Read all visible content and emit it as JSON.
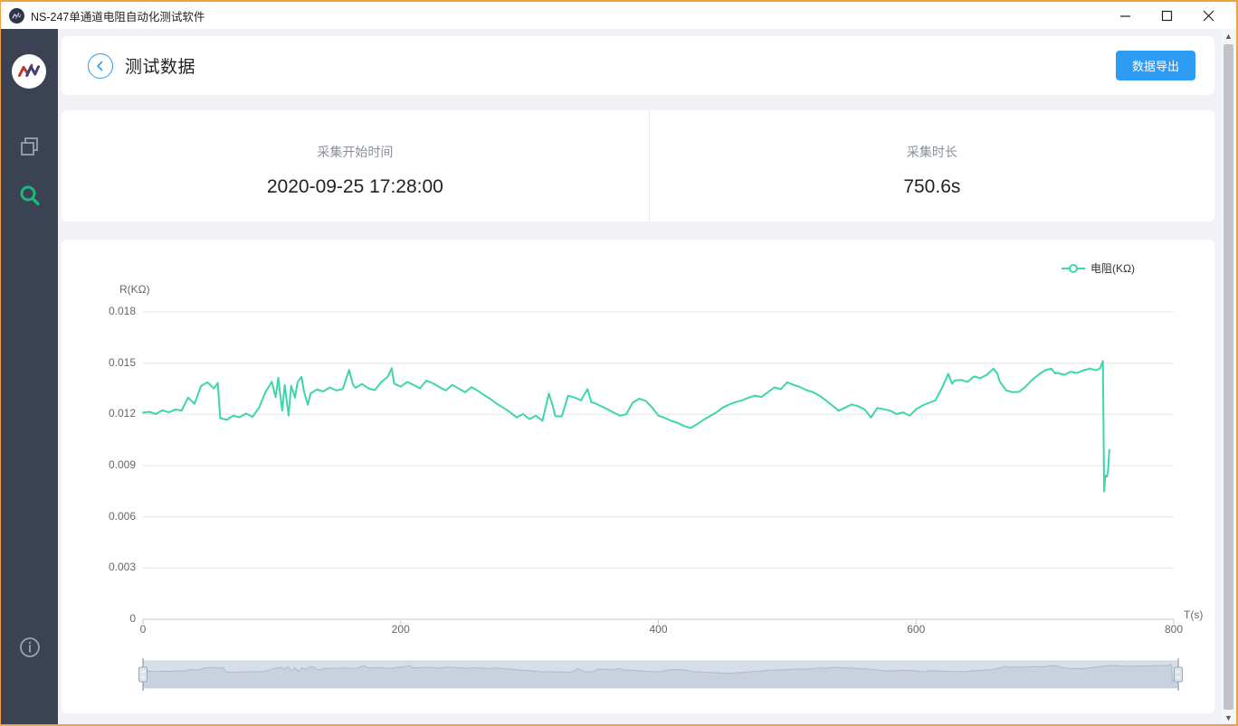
{
  "window": {
    "title": "NS-247单通道电阻自动化测试软件",
    "border_color": "#efa23d"
  },
  "titlebar": {
    "buttons": {
      "minimize": "minimize",
      "maximize": "maximize",
      "close": "close"
    }
  },
  "sidebar": {
    "items": [
      {
        "icon": "overlap-windows-icon",
        "active": false,
        "color": "#9aa2b1"
      },
      {
        "icon": "search-icon",
        "active": true,
        "color": "#1db87a"
      },
      {
        "icon": "info-icon",
        "active": false,
        "color": "#9aa2b1"
      }
    ]
  },
  "header": {
    "title": "测试数据",
    "export_button": "数据导出",
    "accent_color": "#2e9cf5"
  },
  "summary": {
    "fields": [
      {
        "label": "采集开始时间",
        "value": "2020-09-25 17:28:00"
      },
      {
        "label": "采集时长",
        "value": "750.6s"
      }
    ]
  },
  "chart_data": {
    "type": "line",
    "title": "",
    "xlabel": "T(s)",
    "ylabel": "R(KΩ)",
    "xlim": [
      0,
      800
    ],
    "ylim": [
      0,
      0.018
    ],
    "x_ticks": [
      0,
      200,
      400,
      600,
      800
    ],
    "y_ticks": [
      0,
      0.003,
      0.006,
      0.009,
      0.012,
      0.015,
      0.018
    ],
    "grid": "horizontal",
    "legend_position": "top-right",
    "datazoom_slider": true,
    "series": [
      {
        "name": "电阻(KΩ)",
        "color": "#3cd6ad",
        "points": [
          [
            0,
            0.0121
          ],
          [
            5,
            0.01215
          ],
          [
            10,
            0.01202
          ],
          [
            15,
            0.01224
          ],
          [
            20,
            0.01212
          ],
          [
            25,
            0.01228
          ],
          [
            30,
            0.01222
          ],
          [
            35,
            0.01298
          ],
          [
            40,
            0.01262
          ],
          [
            45,
            0.01366
          ],
          [
            50,
            0.01388
          ],
          [
            55,
            0.01352
          ],
          [
            58,
            0.01384
          ],
          [
            60,
            0.01178
          ],
          [
            65,
            0.01168
          ],
          [
            70,
            0.01192
          ],
          [
            75,
            0.01183
          ],
          [
            80,
            0.01205
          ],
          [
            85,
            0.01186
          ],
          [
            90,
            0.01238
          ],
          [
            95,
            0.0133
          ],
          [
            100,
            0.01392
          ],
          [
            103,
            0.013
          ],
          [
            105,
            0.01415
          ],
          [
            108,
            0.01222
          ],
          [
            110,
            0.01372
          ],
          [
            113,
            0.01192
          ],
          [
            115,
            0.01368
          ],
          [
            118,
            0.01298
          ],
          [
            120,
            0.01388
          ],
          [
            123,
            0.0142
          ],
          [
            125,
            0.01332
          ],
          [
            128,
            0.01256
          ],
          [
            130,
            0.01322
          ],
          [
            135,
            0.01346
          ],
          [
            140,
            0.01334
          ],
          [
            145,
            0.01358
          ],
          [
            150,
            0.0134
          ],
          [
            155,
            0.01348
          ],
          [
            160,
            0.0146
          ],
          [
            163,
            0.01372
          ],
          [
            165,
            0.01356
          ],
          [
            170,
            0.01378
          ],
          [
            175,
            0.01352
          ],
          [
            180,
            0.01342
          ],
          [
            185,
            0.0139
          ],
          [
            190,
            0.0142
          ],
          [
            193,
            0.0147
          ],
          [
            195,
            0.0138
          ],
          [
            200,
            0.01362
          ],
          [
            205,
            0.0139
          ],
          [
            210,
            0.01372
          ],
          [
            215,
            0.01352
          ],
          [
            220,
            0.01398
          ],
          [
            225,
            0.01382
          ],
          [
            230,
            0.0136
          ],
          [
            235,
            0.0134
          ],
          [
            240,
            0.01372
          ],
          [
            245,
            0.01352
          ],
          [
            250,
            0.0133
          ],
          [
            255,
            0.0136
          ],
          [
            260,
            0.01338
          ],
          [
            265,
            0.01312
          ],
          [
            270,
            0.01288
          ],
          [
            275,
            0.0126
          ],
          [
            280,
            0.01238
          ],
          [
            285,
            0.01212
          ],
          [
            290,
            0.01182
          ],
          [
            295,
            0.01202
          ],
          [
            300,
            0.01172
          ],
          [
            305,
            0.01192
          ],
          [
            310,
            0.01162
          ],
          [
            315,
            0.01322
          ],
          [
            318,
            0.0125
          ],
          [
            320,
            0.0119
          ],
          [
            325,
            0.01188
          ],
          [
            330,
            0.0131
          ],
          [
            335,
            0.01298
          ],
          [
            340,
            0.01282
          ],
          [
            345,
            0.01348
          ],
          [
            348,
            0.0127
          ],
          [
            350,
            0.01268
          ],
          [
            355,
            0.0125
          ],
          [
            360,
            0.01232
          ],
          [
            365,
            0.01212
          ],
          [
            370,
            0.01192
          ],
          [
            375,
            0.012
          ],
          [
            380,
            0.01268
          ],
          [
            385,
            0.01292
          ],
          [
            390,
            0.0128
          ],
          [
            395,
            0.01242
          ],
          [
            400,
            0.01192
          ],
          [
            405,
            0.0118
          ],
          [
            410,
            0.01162
          ],
          [
            415,
            0.0115
          ],
          [
            420,
            0.01132
          ],
          [
            425,
            0.0112
          ],
          [
            430,
            0.01142
          ],
          [
            435,
            0.01168
          ],
          [
            440,
            0.0119
          ],
          [
            445,
            0.01212
          ],
          [
            450,
            0.0124
          ],
          [
            455,
            0.01258
          ],
          [
            460,
            0.01272
          ],
          [
            465,
            0.01282
          ],
          [
            470,
            0.01298
          ],
          [
            475,
            0.0131
          ],
          [
            480,
            0.01302
          ],
          [
            485,
            0.0133
          ],
          [
            490,
            0.01358
          ],
          [
            495,
            0.01348
          ],
          [
            500,
            0.01388
          ],
          [
            505,
            0.01372
          ],
          [
            510,
            0.0136
          ],
          [
            515,
            0.01342
          ],
          [
            520,
            0.0133
          ],
          [
            525,
            0.0131
          ],
          [
            530,
            0.01282
          ],
          [
            535,
            0.01252
          ],
          [
            540,
            0.01222
          ],
          [
            545,
            0.0124
          ],
          [
            550,
            0.01258
          ],
          [
            555,
            0.01248
          ],
          [
            560,
            0.0123
          ],
          [
            565,
            0.01182
          ],
          [
            570,
            0.01238
          ],
          [
            575,
            0.0123
          ],
          [
            580,
            0.01222
          ],
          [
            585,
            0.01202
          ],
          [
            590,
            0.01212
          ],
          [
            595,
            0.01192
          ],
          [
            600,
            0.0123
          ],
          [
            605,
            0.01252
          ],
          [
            610,
            0.01268
          ],
          [
            615,
            0.01282
          ],
          [
            620,
            0.01352
          ],
          [
            625,
            0.01438
          ],
          [
            628,
            0.0138
          ],
          [
            630,
            0.01398
          ],
          [
            635,
            0.01402
          ],
          [
            640,
            0.0139
          ],
          [
            645,
            0.01422
          ],
          [
            650,
            0.01412
          ],
          [
            655,
            0.01432
          ],
          [
            660,
            0.01468
          ],
          [
            663,
            0.0144
          ],
          [
            665,
            0.01392
          ],
          [
            670,
            0.0134
          ],
          [
            675,
            0.0133
          ],
          [
            680,
            0.01332
          ],
          [
            685,
            0.01362
          ],
          [
            690,
            0.01402
          ],
          [
            695,
            0.01432
          ],
          [
            700,
            0.01458
          ],
          [
            705,
            0.01468
          ],
          [
            708,
            0.0144
          ],
          [
            710,
            0.01442
          ],
          [
            715,
            0.01432
          ],
          [
            720,
            0.0145
          ],
          [
            725,
            0.01442
          ],
          [
            730,
            0.01458
          ],
          [
            735,
            0.01468
          ],
          [
            740,
            0.01458
          ],
          [
            743,
            0.01472
          ],
          [
            745,
            0.01512
          ],
          [
            746,
            0.00748
          ],
          [
            747,
            0.00842
          ],
          [
            748,
            0.00836
          ],
          [
            749,
            0.00868
          ],
          [
            750,
            0.00992
          ]
        ]
      }
    ]
  }
}
